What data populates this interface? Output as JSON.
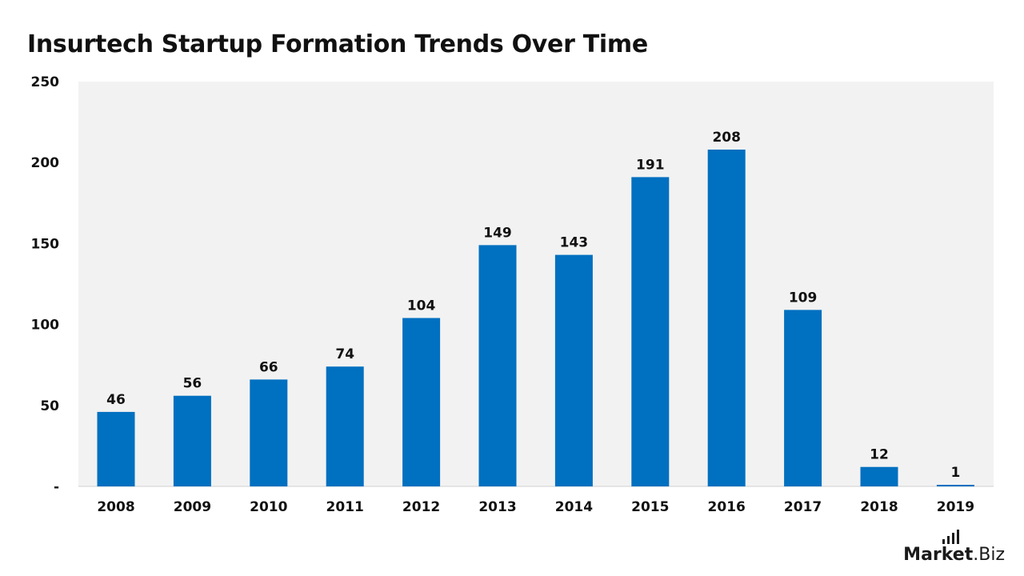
{
  "title": "Insurtech Startup Formation Trends Over Time",
  "brand": {
    "name": "Market",
    "suffix": ".Biz"
  },
  "colors": {
    "bar": "#0070c0",
    "plot_bg": "#f2f2f2",
    "text": "#111111"
  },
  "chart_data": {
    "type": "bar",
    "title": "Insurtech Startup Formation Trends Over Time",
    "categories": [
      "2008",
      "2009",
      "2010",
      "2011",
      "2012",
      "2013",
      "2014",
      "2015",
      "2016",
      "2017",
      "2018",
      "2019"
    ],
    "values": [
      46,
      56,
      66,
      74,
      104,
      149,
      143,
      191,
      208,
      109,
      12,
      1
    ],
    "y_ticks": [
      "-",
      "50",
      "100",
      "150",
      "200",
      "250"
    ],
    "ylim": [
      0,
      250
    ],
    "xlabel": "",
    "ylabel": "",
    "grid": false,
    "data_labels": true
  }
}
